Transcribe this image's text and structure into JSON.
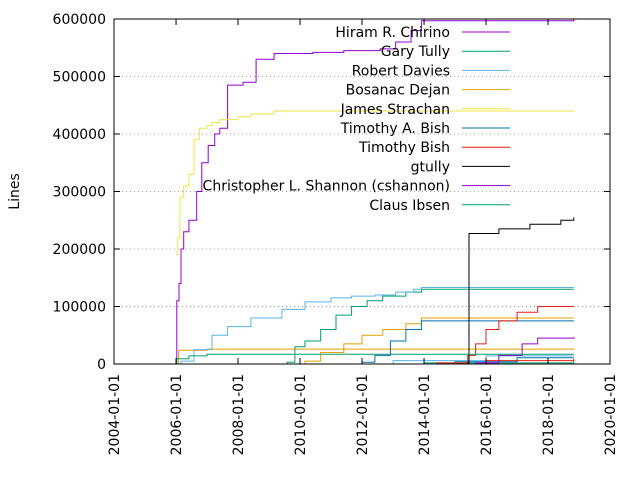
{
  "chart_data": {
    "type": "line",
    "title": "",
    "xlabel": "",
    "ylabel": "Lines",
    "grid": "horizontal dotted gridlines",
    "legend_position": "top-right",
    "x_is_date": true,
    "xlim": [
      "2004-01-01",
      "2020-01-01"
    ],
    "ylim": [
      0,
      600000
    ],
    "x_ticks": [
      "2004-01-01",
      "2006-01-01",
      "2008-01-01",
      "2010-01-01",
      "2012-01-01",
      "2014-01-01",
      "2016-01-01",
      "2018-01-01",
      "2020-01-01"
    ],
    "y_ticks": [
      "0",
      "100000",
      "200000",
      "300000",
      "400000",
      "500000",
      "600000"
    ],
    "series": [
      {
        "name": "Hiram R. Chirino",
        "color": "#9400d3",
        "points": [
          [
            "2006-01-05",
            0
          ],
          [
            "2006-01-10",
            110000
          ],
          [
            "2006-02-05",
            140000
          ],
          [
            "2006-03-01",
            200000
          ],
          [
            "2006-04-01",
            230000
          ],
          [
            "2006-06-01",
            250000
          ],
          [
            "2006-09-01",
            300000
          ],
          [
            "2006-11-01",
            350000
          ],
          [
            "2007-01-15",
            380000
          ],
          [
            "2007-04-01",
            400000
          ],
          [
            "2007-06-01",
            410000
          ],
          [
            "2007-09-01",
            485000
          ],
          [
            "2008-03-01",
            490000
          ],
          [
            "2008-08-01",
            530000
          ],
          [
            "2009-03-01",
            540000
          ],
          [
            "2010-06-01",
            542000
          ],
          [
            "2011-06-01",
            545000
          ],
          [
            "2012-08-01",
            548000
          ],
          [
            "2013-02-01",
            560000
          ],
          [
            "2013-08-01",
            580000
          ],
          [
            "2013-12-01",
            597000
          ],
          [
            "2018-11-01",
            600000
          ]
        ]
      },
      {
        "name": "Gary Tully",
        "color": "#009e73",
        "points": [
          [
            "2006-01-05",
            0
          ],
          [
            "2009-08-01",
            3000
          ],
          [
            "2009-11-01",
            30000
          ],
          [
            "2010-03-01",
            40000
          ],
          [
            "2010-09-01",
            60000
          ],
          [
            "2011-03-01",
            85000
          ],
          [
            "2011-09-01",
            100000
          ],
          [
            "2012-03-01",
            110000
          ],
          [
            "2012-09-01",
            118000
          ],
          [
            "2013-06-01",
            125000
          ],
          [
            "2013-12-01",
            130000
          ],
          [
            "2018-11-01",
            130000
          ]
        ]
      },
      {
        "name": "Robert Davies",
        "color": "#56b4e9",
        "points": [
          [
            "2006-01-05",
            0
          ],
          [
            "2006-03-01",
            5000
          ],
          [
            "2006-08-01",
            25000
          ],
          [
            "2007-03-01",
            50000
          ],
          [
            "2007-09-01",
            65000
          ],
          [
            "2008-06-01",
            80000
          ],
          [
            "2009-06-01",
            95000
          ],
          [
            "2010-03-01",
            108000
          ],
          [
            "2011-01-01",
            115000
          ],
          [
            "2011-09-01",
            118000
          ],
          [
            "2012-06-01",
            120000
          ],
          [
            "2013-02-01",
            125000
          ],
          [
            "2013-09-01",
            130000
          ],
          [
            "2013-12-01",
            133000
          ],
          [
            "2018-11-01",
            133000
          ]
        ]
      },
      {
        "name": "Bosanac Dejan",
        "color": "#e69f00",
        "points": [
          [
            "2006-01-05",
            0
          ],
          [
            "2010-03-01",
            5000
          ],
          [
            "2010-09-01",
            20000
          ],
          [
            "2011-06-01",
            35000
          ],
          [
            "2012-01-01",
            50000
          ],
          [
            "2012-09-01",
            60000
          ],
          [
            "2013-06-01",
            70000
          ],
          [
            "2013-12-01",
            80000
          ],
          [
            "2018-11-01",
            80000
          ]
        ]
      },
      {
        "name": "James Strachan",
        "color": "#f0e442",
        "points": [
          [
            "2006-01-01",
            190000
          ],
          [
            "2006-01-20",
            220000
          ],
          [
            "2006-02-15",
            290000
          ],
          [
            "2006-04-01",
            310000
          ],
          [
            "2006-06-01",
            330000
          ],
          [
            "2006-08-01",
            390000
          ],
          [
            "2006-10-01",
            410000
          ],
          [
            "2007-01-01",
            415000
          ],
          [
            "2007-03-01",
            420000
          ],
          [
            "2007-06-01",
            425000
          ],
          [
            "2008-01-01",
            430000
          ],
          [
            "2008-06-01",
            435000
          ],
          [
            "2009-03-01",
            440000
          ],
          [
            "2018-11-01",
            441000
          ]
        ]
      },
      {
        "name": "Timothy A. Bish",
        "color": "#0072b2",
        "points": [
          [
            "2006-01-05",
            0
          ],
          [
            "2012-01-01",
            3000
          ],
          [
            "2012-06-01",
            15000
          ],
          [
            "2012-12-01",
            40000
          ],
          [
            "2013-06-01",
            60000
          ],
          [
            "2013-12-01",
            75000
          ],
          [
            "2018-11-01",
            75000
          ]
        ]
      },
      {
        "name": "Timothy Bish",
        "color": "#e51e10",
        "points": [
          [
            "2006-01-05",
            0
          ],
          [
            "2014-06-01",
            2000
          ],
          [
            "2015-06-01",
            15000
          ],
          [
            "2015-09-01",
            35000
          ],
          [
            "2016-01-01",
            60000
          ],
          [
            "2016-06-01",
            75000
          ],
          [
            "2017-01-01",
            90000
          ],
          [
            "2017-09-01",
            100000
          ],
          [
            "2018-11-01",
            100000
          ]
        ]
      },
      {
        "name": "gtully",
        "color": "#000000",
        "points": [
          [
            "2006-01-05",
            0
          ],
          [
            "2015-06-01",
            2000
          ],
          [
            "2015-06-15",
            227000
          ],
          [
            "2016-06-01",
            235000
          ],
          [
            "2017-06-01",
            243000
          ],
          [
            "2018-06-01",
            250000
          ],
          [
            "2018-11-01",
            255000
          ]
        ]
      },
      {
        "name": "Christopher L. Shannon (cshannon)",
        "color": "#9400d3",
        "points": [
          [
            "2006-01-05",
            0
          ],
          [
            "2015-09-01",
            2000
          ],
          [
            "2016-06-01",
            15000
          ],
          [
            "2017-03-01",
            35000
          ],
          [
            "2017-09-01",
            45000
          ],
          [
            "2018-11-01",
            47000
          ]
        ]
      },
      {
        "name": "Claus Ibsen",
        "color": "#009e73",
        "points": [
          [
            "2006-01-05",
            0
          ],
          [
            "2006-01-10",
            9000
          ],
          [
            "2006-06-01",
            14000
          ],
          [
            "2007-01-01",
            17000
          ],
          [
            "2018-11-01",
            17000
          ]
        ]
      }
    ],
    "minor_series": [
      {
        "color": "#e69f00",
        "points": [
          [
            "2006-01-05",
            0
          ],
          [
            "2006-02-01",
            24000
          ],
          [
            "2007-01-01",
            26000
          ],
          [
            "2018-11-01",
            27000
          ]
        ]
      },
      {
        "color": "#56b4e9",
        "points": [
          [
            "2006-01-05",
            0
          ],
          [
            "2013-01-01",
            6000
          ],
          [
            "2016-01-01",
            14000
          ],
          [
            "2018-11-01",
            14000
          ]
        ]
      },
      {
        "color": "#0072b2",
        "points": [
          [
            "2006-01-05",
            0
          ],
          [
            "2015-01-01",
            4000
          ],
          [
            "2017-01-01",
            11000
          ],
          [
            "2018-11-01",
            11000
          ]
        ]
      },
      {
        "color": "#e51e10",
        "points": [
          [
            "2006-01-05",
            0
          ],
          [
            "2016-01-01",
            6000
          ],
          [
            "2018-11-01",
            9000
          ]
        ]
      },
      {
        "color": "#009e73",
        "points": [
          [
            "2006-01-05",
            0
          ],
          [
            "2014-01-01",
            2000
          ],
          [
            "2018-11-01",
            5000
          ]
        ]
      }
    ]
  }
}
